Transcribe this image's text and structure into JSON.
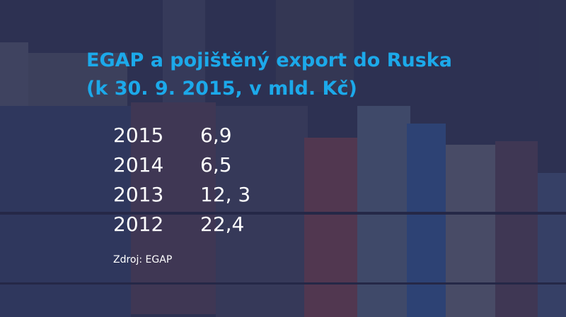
{
  "title": [
    "EGAP a pojištěný export do Ruska",
    "(k 30. 9. 2015, v mld. Kč)"
  ],
  "table": {
    "rows": [
      [
        "2015",
        "6,9"
      ],
      [
        "2014",
        "6,5"
      ],
      [
        "2013",
        "12, 3"
      ],
      [
        "2012",
        "22,4"
      ]
    ]
  },
  "source": "Zdroj: EGAP"
}
